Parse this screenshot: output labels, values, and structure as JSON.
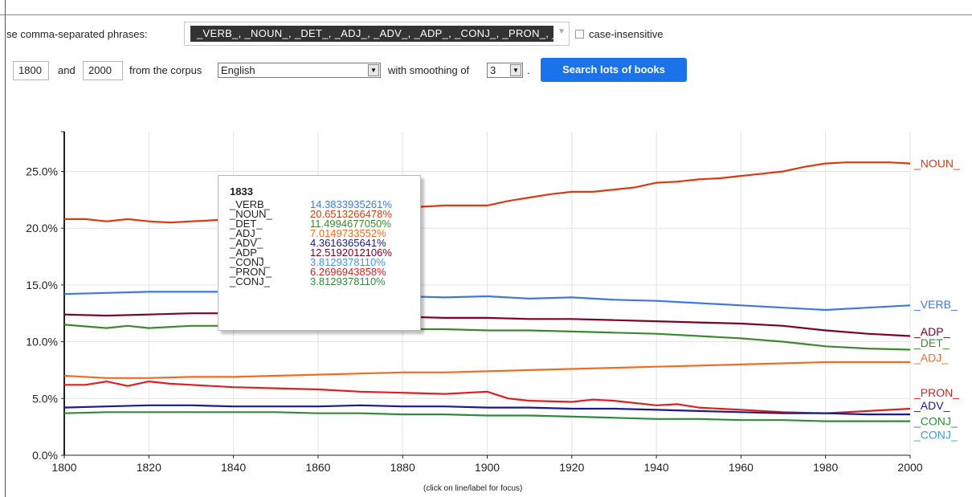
{
  "query": {
    "phrases_label": "se comma-separated phrases:",
    "phrases_value": "_VERB_, _NOUN_, _DET_, _ADJ_, _ADV_, _ADP_, _CONJ_, _PRON_, _",
    "case_insensitive_label": "case-insensitive"
  },
  "range": {
    "start_year": "1800",
    "and_label": "and",
    "end_year": "2000",
    "corpus_label": "from the corpus",
    "corpus_value": "English",
    "smoothing_label": "with smoothing of",
    "smoothing_value": "3",
    "period": ".",
    "search_button": "Search lots of books"
  },
  "footnote": "(click on line/label for focus)",
  "tooltip": {
    "year": "1833",
    "rows": [
      {
        "name": "_VERB_",
        "value": "14.3833935261%",
        "color": "#3d78e2"
      },
      {
        "name": "_NOUN_",
        "value": "20.6513266478%",
        "color": "#dc3912"
      },
      {
        "name": "_DET_",
        "value": "11.4994677050%",
        "color": "#3d8a2d"
      },
      {
        "name": "_ADJ_",
        "value": "7.0149733552%",
        "color": "#f26b21"
      },
      {
        "name": "_ADV_",
        "value": "4.3616365641%",
        "color": "#1a1a8c"
      },
      {
        "name": "_ADP_",
        "value": "12.5192012106%",
        "color": "#800020"
      },
      {
        "name": "_CONJ_",
        "value": "3.8129378110%",
        "color": "#3f9ae0"
      },
      {
        "name": "_PRON_",
        "value": "6.2696943858%",
        "color": "#dc2020"
      },
      {
        "name": "_CONJ_",
        "value": "3.8129378110%",
        "color": "#2e8b3e"
      }
    ]
  },
  "chart_data": {
    "type": "line",
    "title": "",
    "xlabel": "",
    "ylabel": "",
    "xlim": [
      1800,
      2000
    ],
    "ylim": [
      0,
      28.5
    ],
    "grid": true,
    "x_ticks": [
      "1800",
      "1820",
      "1840",
      "1860",
      "1880",
      "1900",
      "1920",
      "1940",
      "1960",
      "1980",
      "2000"
    ],
    "y_ticks": [
      {
        "value": 0,
        "label": "0.0%"
      },
      {
        "value": 5,
        "label": "5.0%"
      },
      {
        "value": 10,
        "label": "10.0%"
      },
      {
        "value": 15,
        "label": "15.0%"
      },
      {
        "value": 20,
        "label": "20.0%"
      },
      {
        "value": 25,
        "label": "25.0%"
      }
    ],
    "series": [
      {
        "name": "_NOUN_",
        "color": "#dc3912",
        "label_y": 25.7,
        "points": [
          [
            1800,
            20.8
          ],
          [
            1805,
            20.8
          ],
          [
            1810,
            20.6
          ],
          [
            1815,
            20.8
          ],
          [
            1820,
            20.6
          ],
          [
            1825,
            20.5
          ],
          [
            1830,
            20.6
          ],
          [
            1833,
            20.65
          ],
          [
            1880,
            21.8
          ],
          [
            1890,
            22.0
          ],
          [
            1900,
            22.0
          ],
          [
            1905,
            22.4
          ],
          [
            1910,
            22.7
          ],
          [
            1915,
            23.0
          ],
          [
            1920,
            23.2
          ],
          [
            1925,
            23.2
          ],
          [
            1930,
            23.4
          ],
          [
            1935,
            23.6
          ],
          [
            1940,
            24.0
          ],
          [
            1945,
            24.1
          ],
          [
            1950,
            24.3
          ],
          [
            1955,
            24.4
          ],
          [
            1960,
            24.6
          ],
          [
            1965,
            24.8
          ],
          [
            1970,
            25.0
          ],
          [
            1975,
            25.4
          ],
          [
            1980,
            25.7
          ],
          [
            1985,
            25.8
          ],
          [
            1990,
            25.8
          ],
          [
            1995,
            25.8
          ],
          [
            2000,
            25.7
          ]
        ]
      },
      {
        "name": "_VERB_",
        "color": "#3d78e2",
        "label_y": 13.3,
        "points": [
          [
            1800,
            14.2
          ],
          [
            1810,
            14.3
          ],
          [
            1820,
            14.4
          ],
          [
            1830,
            14.4
          ],
          [
            1840,
            14.4
          ],
          [
            1850,
            14.3
          ],
          [
            1860,
            14.2
          ],
          [
            1870,
            14.1
          ],
          [
            1880,
            14.0
          ],
          [
            1890,
            13.9
          ],
          [
            1900,
            14.0
          ],
          [
            1910,
            13.8
          ],
          [
            1920,
            13.9
          ],
          [
            1930,
            13.7
          ],
          [
            1940,
            13.6
          ],
          [
            1950,
            13.4
          ],
          [
            1960,
            13.2
          ],
          [
            1970,
            13.0
          ],
          [
            1980,
            12.8
          ],
          [
            1990,
            13.0
          ],
          [
            2000,
            13.2
          ]
        ]
      },
      {
        "name": "_ADP_",
        "color": "#800020",
        "label_y": 10.9,
        "points": [
          [
            1800,
            12.4
          ],
          [
            1810,
            12.3
          ],
          [
            1820,
            12.4
          ],
          [
            1830,
            12.5
          ],
          [
            1840,
            12.5
          ],
          [
            1850,
            12.4
          ],
          [
            1860,
            12.3
          ],
          [
            1870,
            12.2
          ],
          [
            1880,
            12.2
          ],
          [
            1890,
            12.1
          ],
          [
            1900,
            12.1
          ],
          [
            1910,
            12.0
          ],
          [
            1920,
            12.0
          ],
          [
            1930,
            11.9
          ],
          [
            1940,
            11.8
          ],
          [
            1950,
            11.7
          ],
          [
            1960,
            11.6
          ],
          [
            1970,
            11.4
          ],
          [
            1980,
            11.0
          ],
          [
            1990,
            10.7
          ],
          [
            2000,
            10.5
          ]
        ]
      },
      {
        "name": "_DET_",
        "color": "#3d8a2d",
        "label_y": 9.9,
        "points": [
          [
            1800,
            11.5
          ],
          [
            1810,
            11.2
          ],
          [
            1815,
            11.4
          ],
          [
            1820,
            11.2
          ],
          [
            1830,
            11.4
          ],
          [
            1840,
            11.4
          ],
          [
            1850,
            11.3
          ],
          [
            1860,
            11.2
          ],
          [
            1870,
            11.1
          ],
          [
            1880,
            11.1
          ],
          [
            1890,
            11.1
          ],
          [
            1900,
            11.0
          ],
          [
            1910,
            11.0
          ],
          [
            1920,
            10.9
          ],
          [
            1930,
            10.8
          ],
          [
            1940,
            10.7
          ],
          [
            1950,
            10.5
          ],
          [
            1960,
            10.3
          ],
          [
            1970,
            10.0
          ],
          [
            1980,
            9.6
          ],
          [
            1990,
            9.4
          ],
          [
            2000,
            9.3
          ]
        ]
      },
      {
        "name": "_ADJ_",
        "color": "#f26b21",
        "label_y": 8.6,
        "points": [
          [
            1800,
            7.0
          ],
          [
            1810,
            6.8
          ],
          [
            1820,
            6.8
          ],
          [
            1830,
            6.9
          ],
          [
            1840,
            6.9
          ],
          [
            1850,
            7.0
          ],
          [
            1860,
            7.1
          ],
          [
            1870,
            7.2
          ],
          [
            1880,
            7.3
          ],
          [
            1890,
            7.3
          ],
          [
            1900,
            7.4
          ],
          [
            1910,
            7.5
          ],
          [
            1920,
            7.6
          ],
          [
            1930,
            7.7
          ],
          [
            1940,
            7.8
          ],
          [
            1950,
            7.9
          ],
          [
            1960,
            8.0
          ],
          [
            1970,
            8.1
          ],
          [
            1980,
            8.2
          ],
          [
            1990,
            8.2
          ],
          [
            2000,
            8.2
          ]
        ]
      },
      {
        "name": "_PRON_",
        "color": "#dc2020",
        "label_y": 5.5,
        "points": [
          [
            1800,
            6.2
          ],
          [
            1805,
            6.2
          ],
          [
            1810,
            6.5
          ],
          [
            1815,
            6.1
          ],
          [
            1820,
            6.5
          ],
          [
            1825,
            6.3
          ],
          [
            1830,
            6.2
          ],
          [
            1840,
            6.0
          ],
          [
            1850,
            5.9
          ],
          [
            1860,
            5.8
          ],
          [
            1870,
            5.6
          ],
          [
            1880,
            5.5
          ],
          [
            1890,
            5.4
          ],
          [
            1900,
            5.6
          ],
          [
            1905,
            5.0
          ],
          [
            1910,
            4.8
          ],
          [
            1920,
            4.7
          ],
          [
            1925,
            4.9
          ],
          [
            1930,
            4.8
          ],
          [
            1940,
            4.4
          ],
          [
            1945,
            4.5
          ],
          [
            1950,
            4.2
          ],
          [
            1960,
            4.0
          ],
          [
            1970,
            3.8
          ],
          [
            1980,
            3.7
          ],
          [
            1990,
            3.9
          ],
          [
            2000,
            4.1
          ]
        ]
      },
      {
        "name": "_ADV_",
        "color": "#1a1a8c",
        "label_y": 4.4,
        "points": [
          [
            1800,
            4.2
          ],
          [
            1810,
            4.3
          ],
          [
            1820,
            4.4
          ],
          [
            1830,
            4.4
          ],
          [
            1840,
            4.3
          ],
          [
            1850,
            4.3
          ],
          [
            1860,
            4.3
          ],
          [
            1870,
            4.4
          ],
          [
            1880,
            4.3
          ],
          [
            1890,
            4.3
          ],
          [
            1900,
            4.2
          ],
          [
            1910,
            4.2
          ],
          [
            1920,
            4.1
          ],
          [
            1930,
            4.1
          ],
          [
            1940,
            4.0
          ],
          [
            1950,
            3.9
          ],
          [
            1960,
            3.8
          ],
          [
            1970,
            3.7
          ],
          [
            1980,
            3.7
          ],
          [
            1990,
            3.6
          ],
          [
            2000,
            3.6
          ]
        ]
      },
      {
        "name": "_CONJ_",
        "color": "#2e8b3e",
        "label_y": 3.0,
        "points": [
          [
            1800,
            3.7
          ],
          [
            1810,
            3.8
          ],
          [
            1820,
            3.8
          ],
          [
            1830,
            3.8
          ],
          [
            1840,
            3.8
          ],
          [
            1850,
            3.8
          ],
          [
            1860,
            3.7
          ],
          [
            1870,
            3.7
          ],
          [
            1880,
            3.6
          ],
          [
            1890,
            3.6
          ],
          [
            1900,
            3.5
          ],
          [
            1910,
            3.5
          ],
          [
            1920,
            3.4
          ],
          [
            1930,
            3.3
          ],
          [
            1940,
            3.2
          ],
          [
            1950,
            3.2
          ],
          [
            1960,
            3.1
          ],
          [
            1970,
            3.1
          ],
          [
            1980,
            3.0
          ],
          [
            1990,
            3.0
          ],
          [
            2000,
            3.0
          ]
        ]
      },
      {
        "name": "_CONJ_",
        "color": "#3f9ae0",
        "label_y": 1.8,
        "points": []
      }
    ]
  }
}
